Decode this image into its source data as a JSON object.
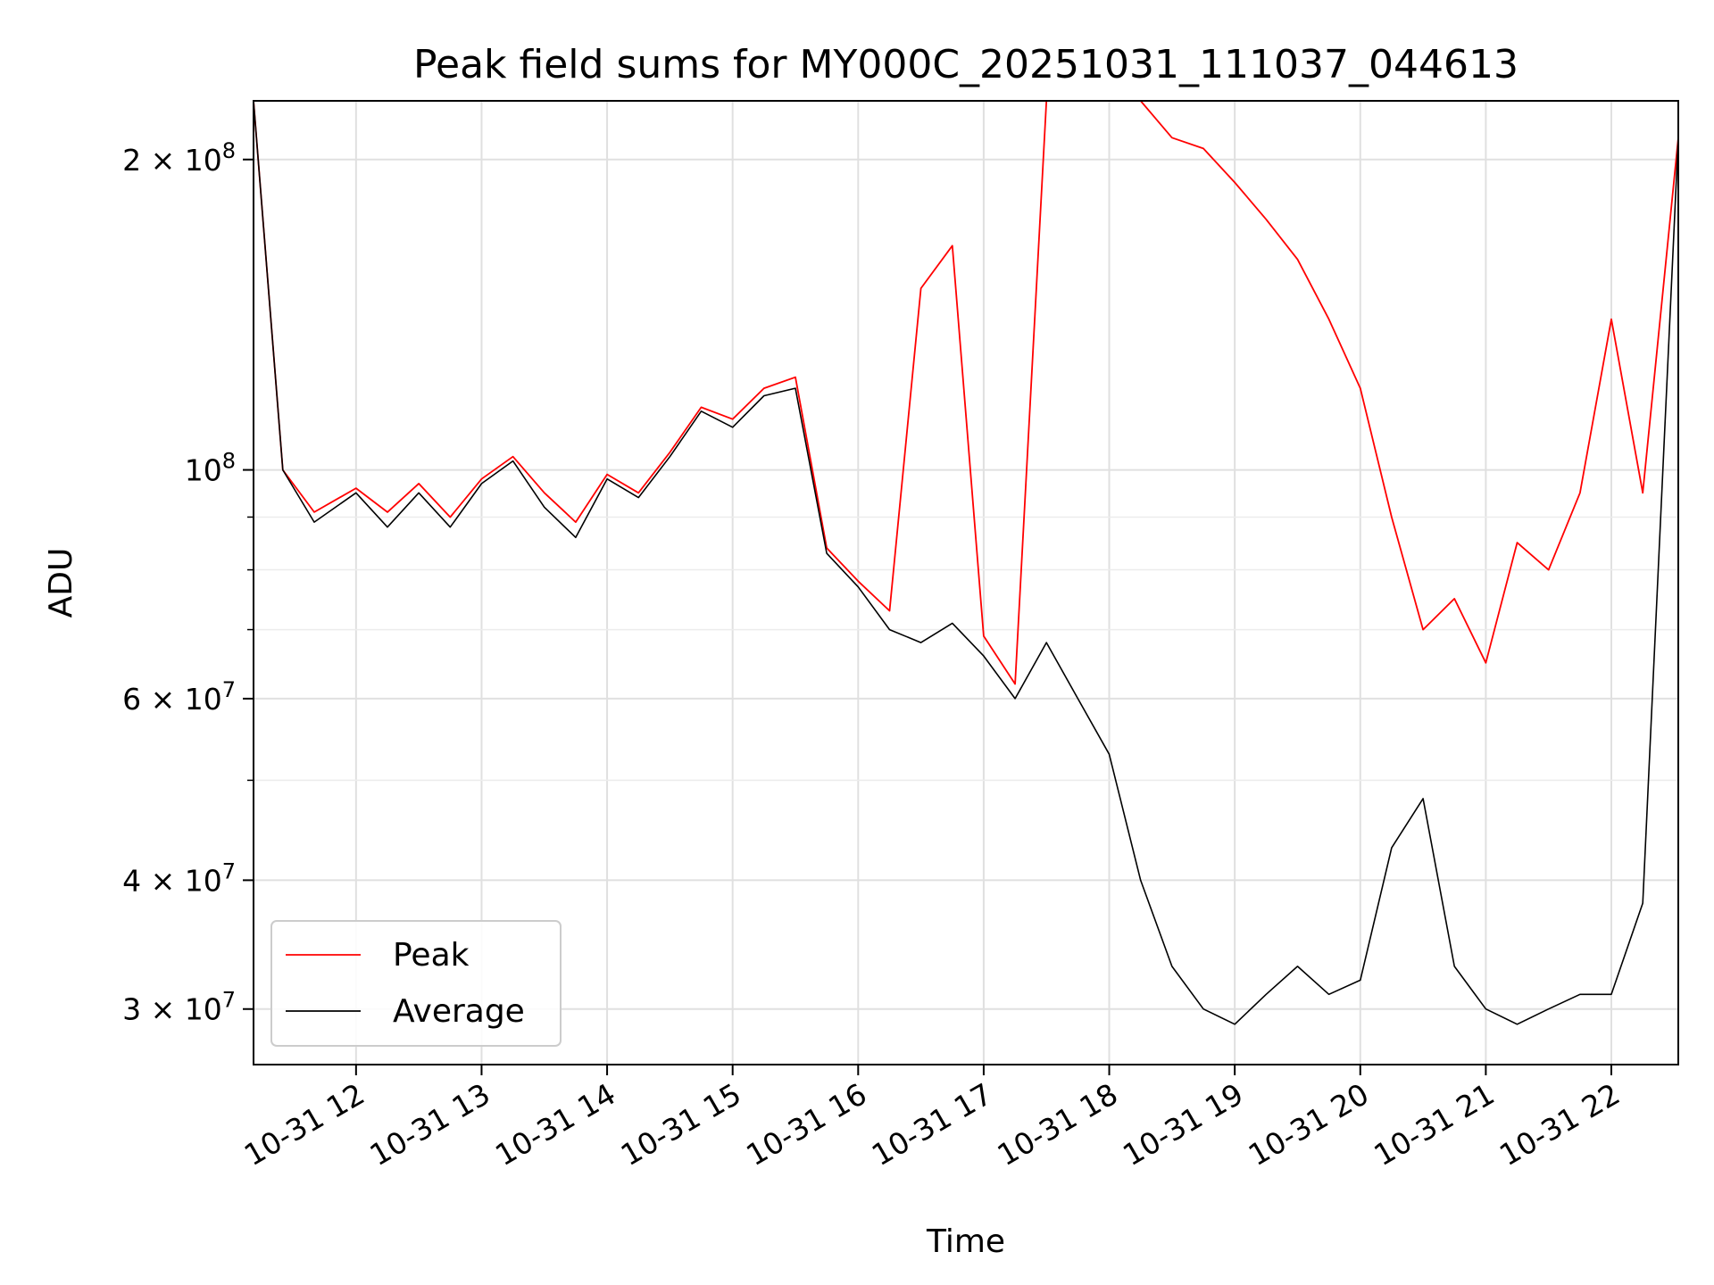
{
  "chart_data": {
    "type": "line",
    "title": "Peak field sums for MY000C_20251031_111037_044613",
    "xlabel": "Time",
    "ylabel": "ADU",
    "yscale": "log",
    "ylim": [
      26500000,
      228000000
    ],
    "xlim": [
      "10-31 11:11",
      "10-31 22:32"
    ],
    "grid": true,
    "legend_position": "lower-left",
    "x_ticks": [
      "10-31 12",
      "10-31 13",
      "10-31 14",
      "10-31 15",
      "10-31 16",
      "10-31 17",
      "10-31 18",
      "10-31 19",
      "10-31 20",
      "10-31 21",
      "10-31 22"
    ],
    "y_ticks": [
      {
        "value": 30000000,
        "mantissa": "3",
        "exponent": "7"
      },
      {
        "value": 40000000,
        "mantissa": "4",
        "exponent": "7"
      },
      {
        "value": 60000000,
        "mantissa": "6",
        "exponent": "7"
      },
      {
        "value": 100000000,
        "mantissa": "",
        "exponent": "8"
      },
      {
        "value": 200000000,
        "mantissa": "2",
        "exponent": "8"
      }
    ],
    "y_minor_ticks": [
      50000000,
      70000000,
      80000000,
      90000000
    ],
    "x": [
      "10-31 11:11",
      "10-31 11:25",
      "10-31 11:40",
      "10-31 12:00",
      "10-31 12:15",
      "10-31 12:30",
      "10-31 12:45",
      "10-31 13:00",
      "10-31 13:15",
      "10-31 13:30",
      "10-31 13:45",
      "10-31 14:00",
      "10-31 14:15",
      "10-31 14:30",
      "10-31 14:45",
      "10-31 15:00",
      "10-31 15:15",
      "10-31 15:30",
      "10-31 15:45",
      "10-31 16:00",
      "10-31 16:15",
      "10-31 16:30",
      "10-31 16:45",
      "10-31 17:00",
      "10-31 17:15",
      "10-31 17:30",
      "10-31 17:45",
      "10-31 18:00",
      "10-31 18:15",
      "10-31 18:30",
      "10-31 18:45",
      "10-31 19:00",
      "10-31 19:15",
      "10-31 19:30",
      "10-31 19:45",
      "10-31 20:00",
      "10-31 20:15",
      "10-31 20:30",
      "10-31 20:45",
      "10-31 21:00",
      "10-31 21:15",
      "10-31 21:30",
      "10-31 21:45",
      "10-31 22:00",
      "10-31 22:15",
      "10-31 22:32"
    ],
    "series": [
      {
        "name": "Peak",
        "color": "#ff0000",
        "values": [
          228000000,
          100000000,
          91000000,
          96000000,
          91000000,
          97000000,
          90000000,
          98000000,
          103000000,
          95000000,
          89000000,
          99000000,
          95000000,
          104000000,
          115000000,
          112000000,
          120000000,
          123000000,
          84000000,
          78000000,
          73000000,
          150000000,
          165000000,
          69000000,
          62000000,
          228000000,
          228000000,
          228000000,
          228000000,
          210000000,
          205000000,
          190000000,
          175000000,
          160000000,
          140000000,
          120000000,
          90000000,
          70000000,
          75000000,
          65000000,
          85000000,
          80000000,
          95000000,
          140000000,
          95000000,
          210000000
        ]
      },
      {
        "name": "Average",
        "color": "#000000",
        "values": [
          228000000,
          100000000,
          89000000,
          95000000,
          88000000,
          95000000,
          88000000,
          97000000,
          102000000,
          92000000,
          86000000,
          98000000,
          94000000,
          103000000,
          114000000,
          110000000,
          118000000,
          120000000,
          83000000,
          77000000,
          70000000,
          68000000,
          71000000,
          66000000,
          60000000,
          68000000,
          60000000,
          53000000,
          40000000,
          33000000,
          30000000,
          29000000,
          31000000,
          33000000,
          31000000,
          32000000,
          43000000,
          48000000,
          33000000,
          30000000,
          29000000,
          30000000,
          31000000,
          31000000,
          38000000,
          210000000
        ]
      }
    ]
  }
}
